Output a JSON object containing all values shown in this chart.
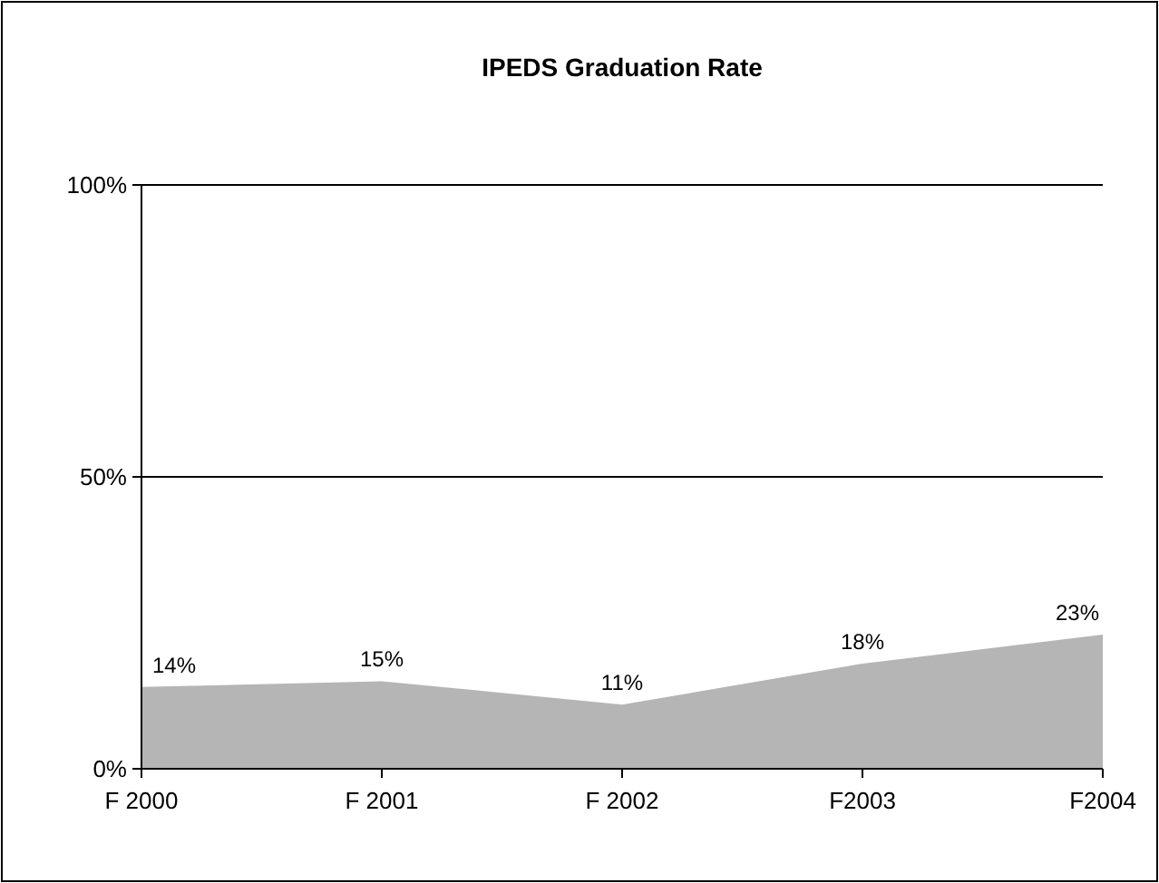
{
  "chart_data": {
    "type": "area",
    "title": "IPEDS Graduation Rate",
    "categories": [
      "F 2000",
      "F 2001",
      "F 2002",
      "F2003",
      "F2004"
    ],
    "values": [
      14,
      15,
      11,
      18,
      23
    ],
    "color": "#b5b5b5",
    "value_labels": [
      "14%",
      "15%",
      "11%",
      "18%",
      "23%"
    ],
    "ylim": [
      0,
      100
    ],
    "yticks": [
      {
        "value": 0,
        "label": "0%"
      },
      {
        "value": 50,
        "label": "50%"
      },
      {
        "value": 100,
        "label": "100%"
      }
    ],
    "grid": "y"
  }
}
